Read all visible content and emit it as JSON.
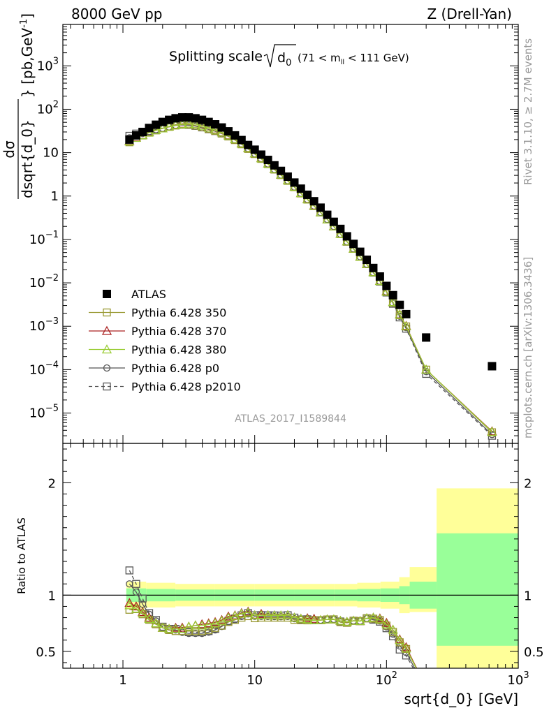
{
  "header": {
    "left": "8000 GeV pp",
    "right": "Z (Drell-Yan)"
  },
  "side_labels": {
    "rivet": "Rivet 3.1.10, ≥ 2.7M events",
    "mcplots": "mcplots.cern.ch [arXiv:1306.3436]"
  },
  "chart_data": [
    {
      "type": "scatter",
      "title": "Splitting scale",
      "title_symbol": "d",
      "title_symbol_sub": "0",
      "title_cut": "(71 < m",
      "title_cut_sub": "ll",
      "title_cut_end": " < 111 GeV)",
      "analysis_label": "ATLAS_2017_I1589844",
      "ylabel": "dσ/dsqrt{d_0} [pb,GeV⁻¹]",
      "ylabel_num": "dσ",
      "ylabel_den": "dsqrt{d_0}",
      "ylabel_unit": "} [pb,GeV",
      "ylabel_unit_sup": "-1",
      "ylabel_unit_end": "]",
      "x_scale": "log",
      "y_scale": "log",
      "xlim": [
        0.35,
        1000
      ],
      "ylim": [
        2e-06,
        9000
      ],
      "y_ticks": [
        {
          "label": "10",
          "exp": "3",
          "v": 1000
        },
        {
          "label": "10",
          "exp": "2",
          "v": 100
        },
        {
          "label": "10",
          "exp": "",
          "v": 10
        },
        {
          "label": "1",
          "exp": "",
          "v": 1
        },
        {
          "label": "10",
          "exp": "−1",
          "v": 0.1
        },
        {
          "label": "10",
          "exp": "−2",
          "v": 0.01
        },
        {
          "label": "10",
          "exp": "−3",
          "v": 0.001
        },
        {
          "label": "10",
          "exp": "−4",
          "v": 0.0001
        },
        {
          "label": "10",
          "exp": "−5",
          "v": 1e-05
        }
      ],
      "legend_position": "bottom-left",
      "x": [
        1.12,
        1.26,
        1.41,
        1.58,
        1.78,
        2.0,
        2.24,
        2.51,
        2.82,
        3.16,
        3.55,
        3.98,
        4.47,
        5.01,
        5.62,
        6.31,
        7.08,
        7.94,
        8.91,
        10.0,
        11.2,
        12.6,
        14.1,
        15.8,
        17.8,
        20.0,
        22.4,
        25.1,
        28.2,
        31.6,
        35.5,
        39.8,
        44.7,
        50.1,
        56.2,
        63.1,
        70.8,
        79.4,
        89.1,
        100,
        112,
        126,
        141,
        200,
        632
      ],
      "series": [
        {
          "name": "ATLAS",
          "color": "#000000",
          "marker": "filled-square",
          "values": [
            20,
            25,
            30,
            37,
            44,
            51,
            57,
            62,
            65,
            65,
            62,
            57,
            51,
            45,
            38,
            31,
            25,
            19.5,
            15,
            11.7,
            9,
            6.8,
            5.1,
            3.8,
            2.8,
            2.05,
            1.48,
            1.07,
            0.76,
            0.54,
            0.37,
            0.255,
            0.175,
            0.118,
            0.079,
            0.052,
            0.034,
            0.022,
            0.014,
            0.0085,
            0.0052,
            0.0031,
            0.0019,
            0.00055,
            0.00012
          ]
        },
        {
          "name": "Pythia 6.428 350",
          "color": "#999933",
          "marker": "open-square",
          "values": [
            17.4,
            21.9,
            24.9,
            28.9,
            32.6,
            36.2,
            39.3,
            42.2,
            44.2,
            44.2,
            42.2,
            38.8,
            35.2,
            31.9,
            27.7,
            23.6,
            19.5,
            15.6,
            12.2,
            9.3,
            7.2,
            5.44,
            4.08,
            3.04,
            2.24,
            1.6,
            1.15,
            0.83,
            0.59,
            0.42,
            0.29,
            0.2,
            0.133,
            0.089,
            0.061,
            0.04,
            0.027,
            0.0174,
            0.0109,
            0.0062,
            0.0035,
            0.0018,
            0.00099,
            0.0001,
            3.6e-06
          ]
        },
        {
          "name": "Pythia 6.428 370",
          "color": "#aa2222",
          "marker": "open-triangle",
          "values": [
            18.6,
            22.5,
            25.5,
            29.6,
            33.0,
            36.2,
            39.9,
            44.0,
            46.2,
            46.8,
            45.3,
            42.2,
            38.2,
            34.2,
            29.6,
            25.1,
            20.5,
            16.4,
            12.8,
            9.6,
            7.5,
            5.58,
            4.18,
            3.11,
            2.3,
            1.64,
            1.17,
            0.85,
            0.6,
            0.42,
            0.29,
            0.2,
            0.135,
            0.09,
            0.061,
            0.04,
            0.027,
            0.0176,
            0.0111,
            0.0064,
            0.0036,
            0.00188,
            0.00102,
            0.0001,
            3.8e-06
          ]
        },
        {
          "name": "Pythia 6.428 380",
          "color": "#99cc33",
          "marker": "open-triangle",
          "values": [
            18.2,
            22.0,
            25.2,
            29.2,
            33.0,
            36.2,
            39.9,
            43.4,
            45.5,
            46.8,
            45.3,
            41.6,
            37.7,
            33.8,
            29.3,
            24.8,
            20.4,
            16.3,
            12.7,
            9.6,
            7.4,
            5.58,
            4.18,
            3.11,
            2.3,
            1.64,
            1.17,
            0.84,
            0.59,
            0.42,
            0.29,
            0.2,
            0.135,
            0.09,
            0.061,
            0.04,
            0.027,
            0.0176,
            0.011,
            0.0063,
            0.0036,
            0.00186,
            0.001,
            0.0001,
            3.7e-06
          ]
        },
        {
          "name": "Pythia 6.428 p0",
          "color": "#555555",
          "marker": "open-circle",
          "values": [
            22.0,
            25.7,
            27.6,
            30.7,
            33.9,
            36.2,
            39.3,
            42.8,
            43.5,
            42.9,
            40.9,
            37.6,
            34.2,
            31.1,
            27.4,
            23.6,
            19.5,
            15.8,
            12.5,
            9.5,
            7.3,
            5.51,
            4.13,
            3.07,
            2.27,
            1.62,
            1.16,
            0.84,
            0.59,
            0.42,
            0.29,
            0.2,
            0.133,
            0.089,
            0.061,
            0.04,
            0.027,
            0.0172,
            0.0108,
            0.0061,
            0.0034,
            0.0017,
            0.00093,
            9e-05,
            3.2e-06
          ]
        },
        {
          "name": "Pythia 6.428 p2010",
          "color": "#555555",
          "marker": "open-square",
          "dashed": true,
          "values": [
            24.4,
            27.5,
            29.1,
            31.1,
            34.3,
            36.7,
            39.9,
            43.4,
            44.2,
            43.6,
            41.5,
            38.2,
            34.7,
            31.5,
            27.7,
            23.9,
            19.8,
            16.0,
            12.6,
            9.6,
            7.4,
            5.58,
            4.18,
            3.11,
            2.3,
            1.64,
            1.16,
            0.84,
            0.59,
            0.42,
            0.29,
            0.2,
            0.134,
            0.089,
            0.061,
            0.04,
            0.027,
            0.0172,
            0.0107,
            0.006,
            0.0033,
            0.0016,
            0.00088,
            8e-05,
            3e-06
          ]
        }
      ]
    },
    {
      "type": "scatter",
      "ylabel": "Ratio to ATLAS",
      "xlabel": "sqrt{d_0} [GeV]",
      "x_scale": "log",
      "xlim": [
        0.35,
        1000
      ],
      "ylim": [
        0.35,
        2.35
      ],
      "y_ticks": [
        {
          "label": "0.5",
          "v": 0.5
        },
        {
          "label": "1",
          "v": 1
        },
        {
          "label": "2",
          "v": 2
        }
      ],
      "x_ticks": [
        {
          "label": "1",
          "exp": "",
          "v": 1
        },
        {
          "label": "10",
          "exp": "",
          "v": 10
        },
        {
          "label": "10",
          "exp": "2",
          "v": 100
        },
        {
          "label": "10",
          "exp": "3",
          "v": 1000
        }
      ],
      "reference_line": 1,
      "bands": [
        {
          "x": [
            1.06,
            1.5,
            2.5,
            5.0,
            10,
            20,
            40,
            60,
            90,
            125,
            150,
            240,
            1000
          ],
          "stat_hi": [
            1.06,
            1.055,
            1.05,
            1.05,
            1.05,
            1.05,
            1.05,
            1.055,
            1.06,
            1.08,
            1.12,
            1.55
          ],
          "stat_lo": [
            0.94,
            0.945,
            0.95,
            0.95,
            0.95,
            0.95,
            0.95,
            0.945,
            0.94,
            0.92,
            0.88,
            0.55
          ],
          "tot_hi": [
            1.12,
            1.11,
            1.1,
            1.1,
            1.1,
            1.1,
            1.1,
            1.11,
            1.12,
            1.16,
            1.25,
            1.95
          ],
          "tot_lo": [
            0.88,
            0.89,
            0.9,
            0.9,
            0.9,
            0.9,
            0.9,
            0.89,
            0.88,
            0.84,
            0.85,
            0.35
          ]
        }
      ],
      "band_colors": {
        "stat": "#99ff99",
        "total": "#ffff99"
      }
    }
  ]
}
